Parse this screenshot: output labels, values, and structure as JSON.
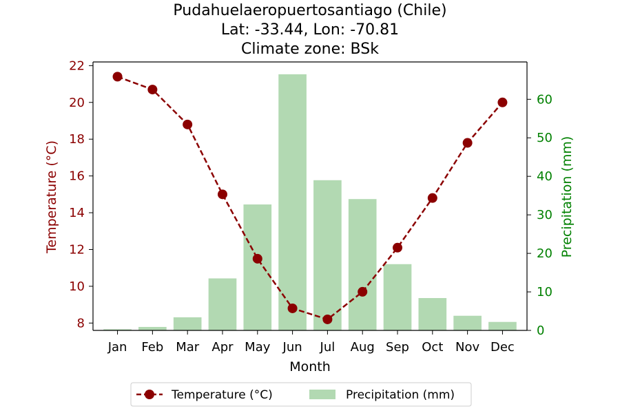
{
  "chart_data": {
    "type": "bar",
    "title_lines": [
      "Pudahuelaeropuertosantiago (Chile)",
      "Lat: -33.44, Lon: -70.81",
      "Climate zone: BSk"
    ],
    "xlabel": "Month",
    "ylabel_left": "Temperature (°C)",
    "ylabel_right": "Precipitation (mm)",
    "categories": [
      "Jan",
      "Feb",
      "Mar",
      "Apr",
      "May",
      "Jun",
      "Jul",
      "Aug",
      "Sep",
      "Oct",
      "Nov",
      "Dec"
    ],
    "series": [
      {
        "name": "Temperature (°C)",
        "type": "line",
        "axis": "left",
        "color": "#8b0000",
        "values": [
          21.4,
          20.7,
          18.8,
          15.0,
          11.5,
          8.8,
          8.2,
          9.7,
          12.1,
          14.8,
          17.8,
          20.0
        ]
      },
      {
        "name": "Precipitation (mm)",
        "type": "bar",
        "axis": "right",
        "color": "#b2d9b2",
        "values": [
          0.3,
          0.9,
          3.4,
          13.5,
          32.7,
          66.5,
          39.0,
          34.1,
          17.2,
          8.4,
          3.8,
          2.2
        ]
      }
    ],
    "ylim_left": [
      7.6,
      22.2
    ],
    "yticks_left": [
      8,
      10,
      12,
      14,
      16,
      18,
      20,
      22
    ],
    "ylim_right": [
      0,
      69.7
    ],
    "yticks_right": [
      0,
      10,
      20,
      30,
      40,
      50,
      60
    ],
    "left_axis_color": "#8b0000",
    "right_axis_color": "#008000",
    "legend_position": "bottom-center",
    "grid": false
  }
}
